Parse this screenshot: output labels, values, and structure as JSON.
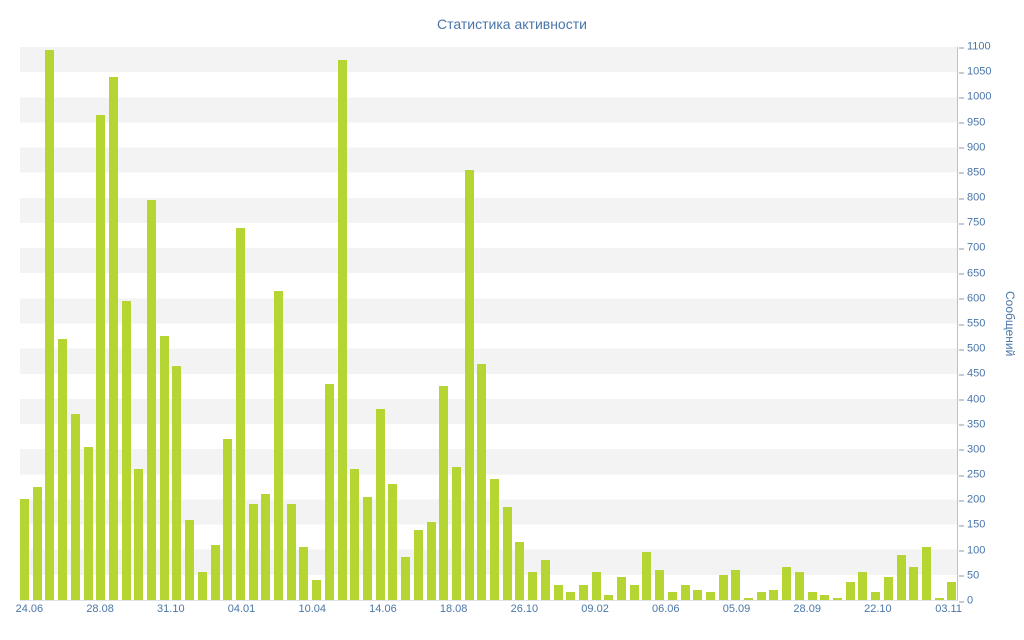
{
  "chart_data": {
    "type": "bar",
    "title": "Статистика активности",
    "ylabel": "Сообщений",
    "xlabel": "",
    "ylim": [
      0,
      1100
    ],
    "ytick_step": 50,
    "grid": "horizontal-stripes",
    "legend": "none",
    "x_labels": [
      "24.06",
      "28.08",
      "31.10",
      "04.01",
      "10.04",
      "14.06",
      "18.08",
      "26.10",
      "09.02",
      "06.06",
      "05.09",
      "28.09",
      "22.10",
      "03.11"
    ],
    "values": [
      200,
      225,
      1095,
      520,
      370,
      305,
      965,
      1040,
      595,
      260,
      795,
      525,
      465,
      160,
      55,
      110,
      320,
      740,
      190,
      210,
      615,
      190,
      105,
      40,
      430,
      1075,
      260,
      205,
      380,
      230,
      85,
      140,
      155,
      425,
      265,
      855,
      470,
      240,
      185,
      115,
      55,
      80,
      30,
      15,
      30,
      55,
      10,
      45,
      30,
      95,
      60,
      15,
      30,
      20,
      15,
      50,
      60,
      5,
      15,
      20,
      65,
      55,
      15,
      10,
      5,
      35,
      55,
      15,
      45,
      90,
      65,
      105,
      5,
      35
    ]
  },
  "colors": {
    "bar": "#b4d532",
    "text_accent": "#4a76a8",
    "stripe": "#f3f3f3",
    "axis_line": "#b8c0cb"
  }
}
